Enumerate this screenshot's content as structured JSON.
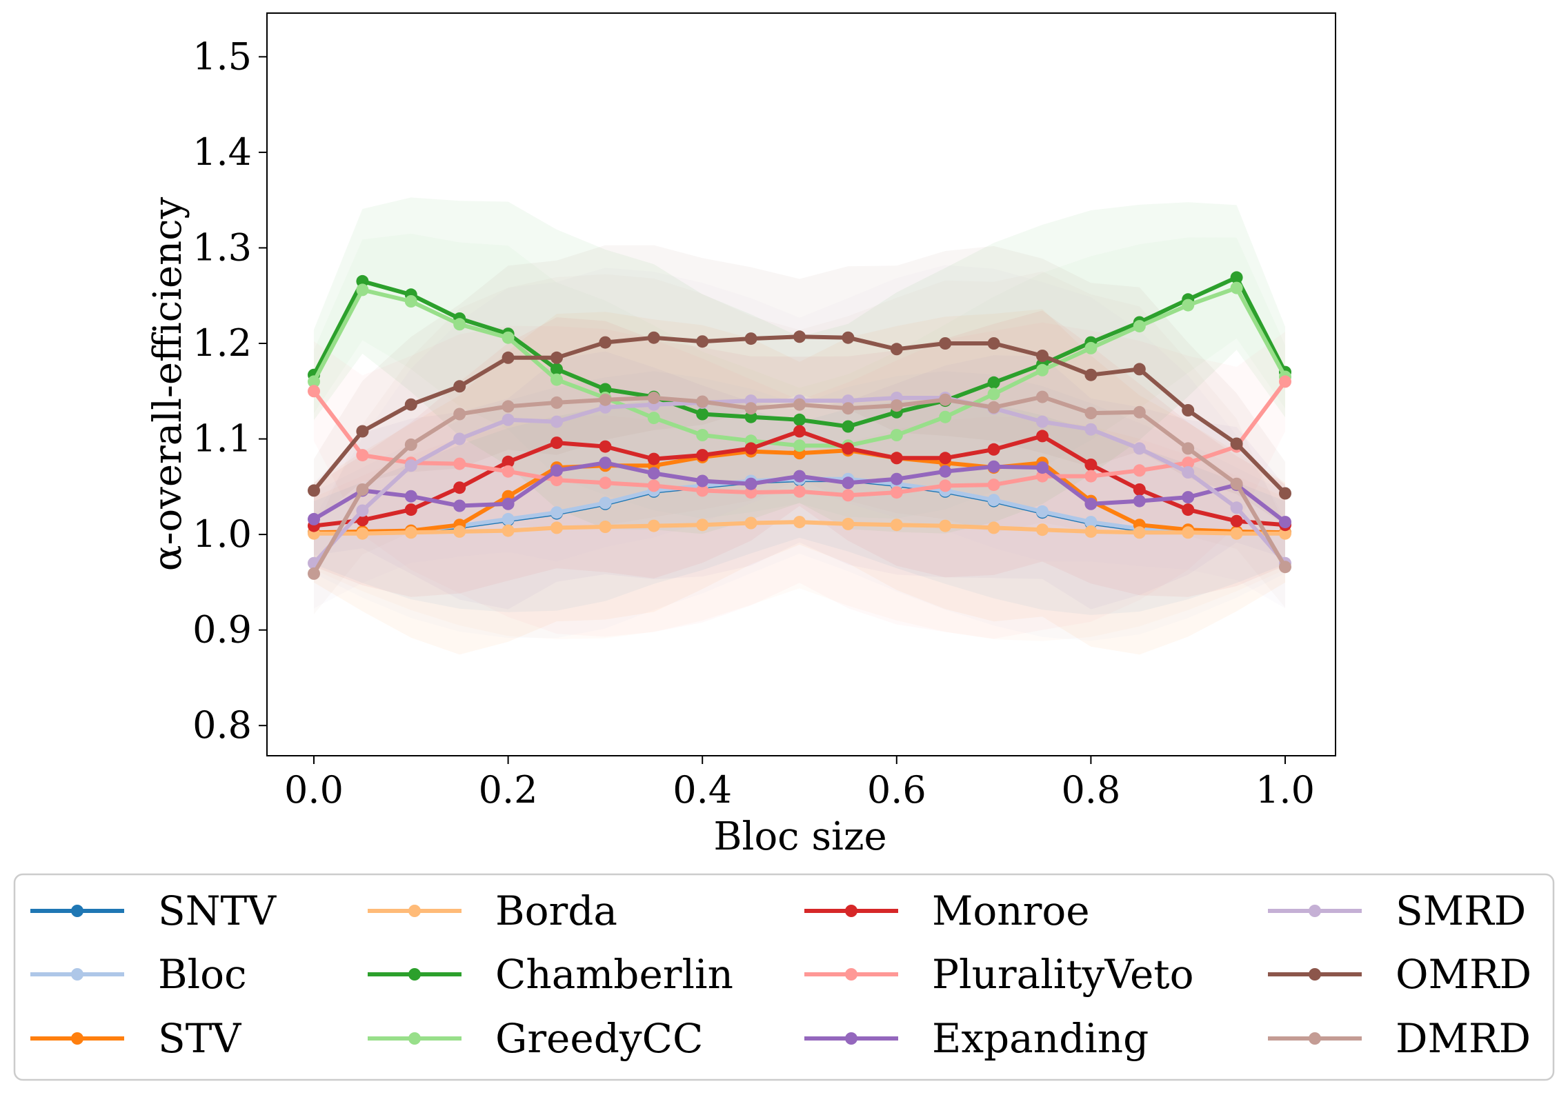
{
  "chart_data": {
    "type": "line",
    "xlabel": "Bloc size",
    "ylabel": "α-overall-efficiency",
    "xlim": [
      -0.05,
      1.05
    ],
    "ylim": [
      0.77,
      1.545
    ],
    "x_ticks": [
      "0.0",
      "0.2",
      "0.4",
      "0.6",
      "0.8",
      "1.0"
    ],
    "y_ticks": [
      "0.8",
      "0.9",
      "1.0",
      "1.1",
      "1.2",
      "1.3",
      "1.4",
      "1.5"
    ],
    "x": [
      0.0,
      0.05,
      0.1,
      0.15,
      0.2,
      0.25,
      0.3,
      0.35,
      0.4,
      0.45,
      0.5,
      0.55,
      0.6,
      0.65,
      0.7,
      0.75,
      0.8,
      0.85,
      0.9,
      0.95,
      1.0
    ],
    "grid": false,
    "legend_position": "bottom",
    "legend_columns": 4,
    "series": [
      {
        "name": "SNTV",
        "color": "#1f77b4",
        "values": [
          1.002,
          1.002,
          1.003,
          1.008,
          1.015,
          1.022,
          1.032,
          1.045,
          1.05,
          1.055,
          1.057,
          1.057,
          1.052,
          1.045,
          1.035,
          1.023,
          1.012,
          1.005,
          1.003,
          1.002,
          1.002
        ]
      },
      {
        "name": "Bloc",
        "color": "#aec7e8",
        "values": [
          1.002,
          1.002,
          1.004,
          1.009,
          1.016,
          1.023,
          1.033,
          1.046,
          1.051,
          1.056,
          1.058,
          1.058,
          1.053,
          1.046,
          1.036,
          1.024,
          1.013,
          1.006,
          1.004,
          1.002,
          1.002
        ]
      },
      {
        "name": "STV",
        "color": "#ff7f0e",
        "values": [
          1.002,
          1.003,
          1.004,
          1.01,
          1.04,
          1.07,
          1.072,
          1.072,
          1.081,
          1.087,
          1.085,
          1.088,
          1.08,
          1.075,
          1.07,
          1.075,
          1.035,
          1.01,
          1.005,
          1.003,
          1.002
        ]
      },
      {
        "name": "Borda",
        "color": "#ffbb78",
        "values": [
          1.001,
          1.001,
          1.002,
          1.003,
          1.004,
          1.007,
          1.008,
          1.009,
          1.01,
          1.012,
          1.013,
          1.011,
          1.01,
          1.009,
          1.007,
          1.005,
          1.003,
          1.002,
          1.002,
          1.001,
          1.001
        ]
      },
      {
        "name": "Chamberlin",
        "color": "#2ca02c",
        "values": [
          1.167,
          1.265,
          1.251,
          1.226,
          1.21,
          1.173,
          1.152,
          1.144,
          1.126,
          1.123,
          1.12,
          1.113,
          1.128,
          1.14,
          1.159,
          1.178,
          1.201,
          1.222,
          1.246,
          1.269,
          1.17
        ]
      },
      {
        "name": "GreedyCC",
        "color": "#98df8a",
        "values": [
          1.16,
          1.256,
          1.244,
          1.22,
          1.206,
          1.162,
          1.143,
          1.122,
          1.104,
          1.098,
          1.093,
          1.093,
          1.104,
          1.123,
          1.147,
          1.172,
          1.195,
          1.218,
          1.24,
          1.258,
          1.165
        ]
      },
      {
        "name": "Monroe",
        "color": "#d62728",
        "values": [
          1.009,
          1.015,
          1.026,
          1.049,
          1.076,
          1.096,
          1.092,
          1.079,
          1.083,
          1.09,
          1.108,
          1.09,
          1.08,
          1.08,
          1.089,
          1.103,
          1.073,
          1.047,
          1.026,
          1.014,
          1.01
        ]
      },
      {
        "name": "PluralityVeto",
        "color": "#ff9896",
        "values": [
          1.15,
          1.083,
          1.075,
          1.074,
          1.066,
          1.057,
          1.054,
          1.051,
          1.046,
          1.044,
          1.045,
          1.041,
          1.044,
          1.051,
          1.052,
          1.061,
          1.061,
          1.067,
          1.075,
          1.092,
          1.16
        ]
      },
      {
        "name": "Expanding",
        "color": "#9467bd",
        "values": [
          1.016,
          1.046,
          1.04,
          1.03,
          1.032,
          1.067,
          1.075,
          1.064,
          1.056,
          1.053,
          1.061,
          1.054,
          1.058,
          1.066,
          1.071,
          1.07,
          1.032,
          1.035,
          1.039,
          1.052,
          1.013
        ]
      },
      {
        "name": "SMRD",
        "color": "#c5b0d5",
        "values": [
          0.97,
          1.025,
          1.072,
          1.1,
          1.12,
          1.118,
          1.133,
          1.136,
          1.138,
          1.14,
          1.14,
          1.14,
          1.143,
          1.143,
          1.132,
          1.118,
          1.11,
          1.09,
          1.065,
          1.028,
          0.97
        ]
      },
      {
        "name": "OMRD",
        "color": "#8c564b",
        "values": [
          1.046,
          1.108,
          1.136,
          1.155,
          1.185,
          1.185,
          1.201,
          1.206,
          1.202,
          1.205,
          1.207,
          1.206,
          1.194,
          1.2,
          1.2,
          1.187,
          1.167,
          1.173,
          1.13,
          1.095,
          1.043
        ]
      },
      {
        "name": "DMRD",
        "color": "#c49c94",
        "values": [
          0.959,
          1.047,
          1.094,
          1.126,
          1.134,
          1.138,
          1.141,
          1.143,
          1.139,
          1.132,
          1.136,
          1.132,
          1.135,
          1.141,
          1.133,
          1.144,
          1.127,
          1.128,
          1.09,
          1.053,
          0.966
        ]
      }
    ]
  }
}
